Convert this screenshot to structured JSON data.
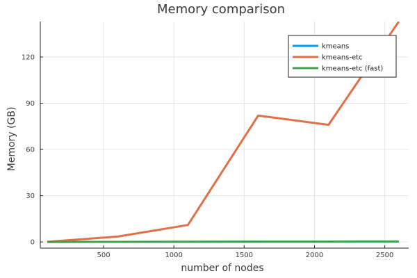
{
  "chart_data": {
    "type": "line",
    "title": "Memory comparison",
    "xlabel": "number of nodes",
    "ylabel": "Memory (GB)",
    "xlim": [
      50,
      2670
    ],
    "ylim": [
      -4,
      143
    ],
    "xticks": [
      500,
      1000,
      1500,
      2000,
      2500
    ],
    "yticks": [
      0,
      30,
      60,
      90,
      120
    ],
    "grid": true,
    "legend_position": "top-right",
    "x": [
      100,
      600,
      1100,
      1600,
      2100,
      2600
    ],
    "series": [
      {
        "name": "kmeans",
        "color": "#009AFA",
        "values": [
          0.02,
          0.05,
          0.1,
          0.15,
          0.2,
          0.25
        ]
      },
      {
        "name": "kmeans-etc",
        "color": "#E26F46",
        "values": [
          0.1,
          3.5,
          11,
          82,
          76,
          143
        ]
      },
      {
        "name": "kmeans-etc (fast)",
        "color": "#3DA44D",
        "values": [
          0.02,
          0.05,
          0.1,
          0.15,
          0.2,
          0.25
        ]
      }
    ]
  }
}
